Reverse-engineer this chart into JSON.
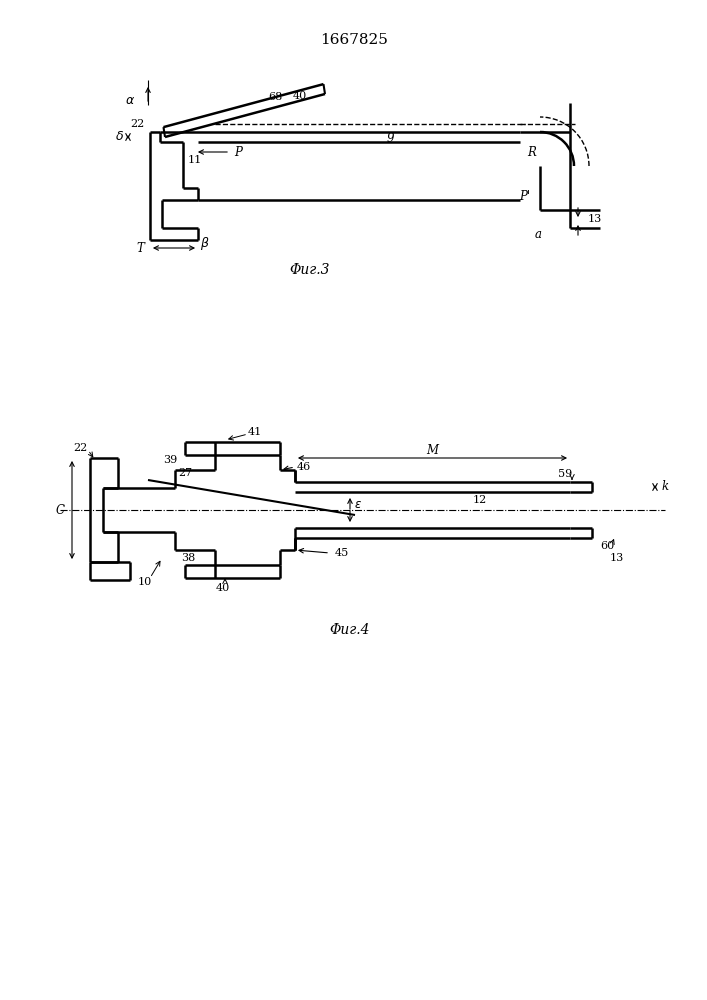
{
  "title": "1667825",
  "fig3_caption": "Φиг.3",
  "fig4_caption": "Φиг.4",
  "bg_color": "#ffffff"
}
